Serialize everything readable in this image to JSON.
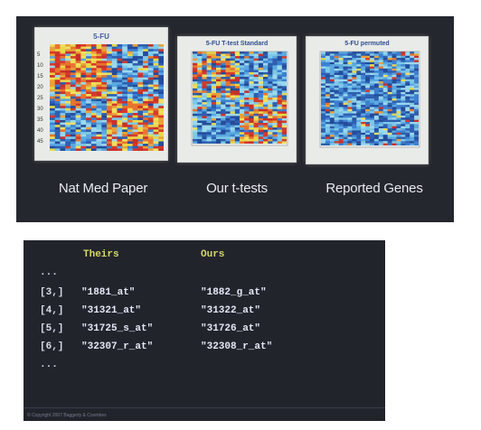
{
  "slide_top": {
    "panels": [
      {
        "title": "5-FU",
        "caption": "Nat Med Paper",
        "yticks": [
          "5",
          "10",
          "15",
          "20",
          "25",
          "30",
          "35",
          "40",
          "45"
        ]
      },
      {
        "title": "5-FU T-test Standard",
        "caption": "Our t-tests"
      },
      {
        "title": "5-FU permuted",
        "caption": "Reported Genes"
      }
    ]
  },
  "slide_bottom": {
    "headers": {
      "theirs": "Theirs",
      "ours": "Ours"
    },
    "ellipsis_top": "...",
    "rows": [
      {
        "index": "[3,]",
        "theirs": "\"1881_at\"",
        "ours": "\"1882_g_at\""
      },
      {
        "index": "[4,]",
        "theirs": "\"31321_at\"",
        "ours": "\"31322_at\""
      },
      {
        "index": "[5,]",
        "theirs": "\"31725_s_at\"",
        "ours": "\"31726_at\""
      },
      {
        "index": "[6,]",
        "theirs": "\"32307_r_at\"",
        "ours": "\"32308_r_at\""
      }
    ],
    "ellipsis_bottom": "...",
    "footer": "© Copyright 2007 Baggerly & Coombes"
  },
  "colors": {
    "slide_bg": "#24272d",
    "header_yellow": "#d7d86a",
    "heat_red": "#d63a2a",
    "heat_yellow": "#e8d84a",
    "heat_blue": "#3d7fd0",
    "heat_cyan": "#7ec8e8"
  }
}
